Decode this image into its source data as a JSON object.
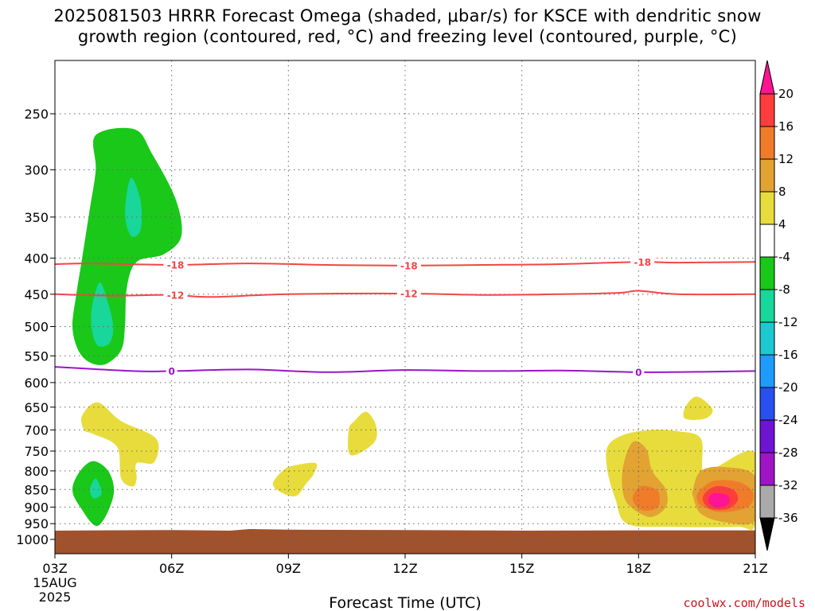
{
  "title": {
    "line1": "2025081503 HRRR Forecast Omega (shaded, μbar/s) for KSCE with dendritic snow",
    "line2": "growth region (contoured, red, °C) and freezing level (contoured, purple, °C)"
  },
  "credit": "coolwx.com/models",
  "chart_data": {
    "type": "heatmap",
    "title": "2025081503 HRRR Forecast Omega (shaded, μbar/s) for KSCE with dendritic snow growth region (contoured, red, °C) and freezing level (contoured, purple, °C)",
    "xlabel": "Forecast Time (UTC)",
    "ylabel": "",
    "x_range_hours": [
      3,
      21
    ],
    "y_range_hpa": [
      1040,
      200
    ],
    "y_axis": "pressure (inverted)",
    "grid": true,
    "x_ticks": [
      {
        "hour": 3,
        "label": "03Z",
        "sub1": "15AUG",
        "sub2": "2025"
      },
      {
        "hour": 6,
        "label": "06Z"
      },
      {
        "hour": 9,
        "label": "09Z"
      },
      {
        "hour": 12,
        "label": "12Z"
      },
      {
        "hour": 15,
        "label": "15Z"
      },
      {
        "hour": 18,
        "label": "18Z"
      },
      {
        "hour": 21,
        "label": "21Z"
      }
    ],
    "y_ticks": [
      "250",
      "300",
      "350",
      "400",
      "450",
      "500",
      "550",
      "600",
      "650",
      "700",
      "750",
      "800",
      "850",
      "900",
      "950",
      "1000"
    ],
    "colorbar": {
      "labels": [
        "20",
        "16",
        "12",
        "8",
        "4",
        "-4",
        "-8",
        "-12",
        "-16",
        "-20",
        "-24",
        "-28",
        "-32",
        "-36"
      ],
      "colors": [
        "#ff1493",
        "#ff3d3d",
        "#f07c2a",
        "#e2a333",
        "#e8dc3c",
        "#ffffff",
        "#19c819",
        "#19d69b",
        "#1ec8d2",
        "#1e9bff",
        "#2850f0",
        "#6e14d2",
        "#a014c8",
        "#aaaaaa",
        "#000000"
      ]
    },
    "contours": [
      {
        "name": "-18",
        "color": "#f04646",
        "label": "-18",
        "points": [
          [
            3,
            408
          ],
          [
            4,
            407
          ],
          [
            6,
            409
          ],
          [
            8,
            407
          ],
          [
            10,
            409
          ],
          [
            12,
            410
          ],
          [
            14,
            409
          ],
          [
            16,
            408
          ],
          [
            18,
            405
          ],
          [
            19,
            406
          ],
          [
            21,
            405
          ]
        ],
        "label_hours": [
          6.1,
          12.1,
          18.1
        ]
      },
      {
        "name": "-12",
        "color": "#f04646",
        "label": "-12",
        "points": [
          [
            3,
            450
          ],
          [
            4.5,
            452
          ],
          [
            6,
            451
          ],
          [
            7,
            454
          ],
          [
            9,
            450
          ],
          [
            12,
            449
          ],
          [
            14,
            451
          ],
          [
            16,
            450
          ],
          [
            17.5,
            448
          ],
          [
            18,
            445
          ],
          [
            19,
            450
          ],
          [
            21,
            450
          ]
        ],
        "label_hours": [
          6.1,
          12.1
        ]
      },
      {
        "name": "0",
        "color": "#9b14c8",
        "label": "0",
        "points": [
          [
            3,
            570
          ],
          [
            5,
            578
          ],
          [
            6,
            578
          ],
          [
            8,
            575
          ],
          [
            10,
            580
          ],
          [
            12,
            576
          ],
          [
            14,
            578
          ],
          [
            16,
            577
          ],
          [
            18,
            580
          ],
          [
            20,
            579
          ],
          [
            21,
            578
          ]
        ],
        "label_hours": [
          6,
          18
        ]
      }
    ],
    "omega_regions": [
      {
        "level": -4,
        "color": "#19c819",
        "points": [
          [
            4.05,
            268
          ],
          [
            5.05,
            263
          ],
          [
            5.5,
            285
          ],
          [
            6.1,
            330
          ],
          [
            6.25,
            372
          ],
          [
            5.8,
            395
          ],
          [
            5.1,
            405
          ],
          [
            4.85,
            440
          ],
          [
            4.8,
            500
          ],
          [
            4.7,
            540
          ],
          [
            4.3,
            565
          ],
          [
            3.9,
            562
          ],
          [
            3.6,
            540
          ],
          [
            3.45,
            500
          ],
          [
            3.55,
            450
          ],
          [
            3.7,
            400
          ],
          [
            3.9,
            340
          ],
          [
            4.05,
            300
          ]
        ]
      },
      {
        "level": -8,
        "color": "#19d69b",
        "points": [
          [
            4.95,
            308
          ],
          [
            5.2,
            332
          ],
          [
            5.2,
            365
          ],
          [
            4.95,
            372
          ],
          [
            4.8,
            345
          ]
        ]
      },
      {
        "level": -8,
        "color": "#19d69b",
        "points": [
          [
            4.15,
            433
          ],
          [
            4.35,
            460
          ],
          [
            4.5,
            500
          ],
          [
            4.4,
            528
          ],
          [
            4.1,
            532
          ],
          [
            3.95,
            505
          ],
          [
            3.95,
            470
          ]
        ]
      },
      {
        "level": -4,
        "color": "#19c819",
        "points": [
          [
            4.0,
            775
          ],
          [
            4.4,
            805
          ],
          [
            4.5,
            870
          ],
          [
            4.1,
            957
          ],
          [
            3.65,
            900
          ],
          [
            3.45,
            850
          ],
          [
            3.65,
            800
          ]
        ]
      },
      {
        "level": -8,
        "color": "#19d69b",
        "points": [
          [
            4.05,
            820
          ],
          [
            4.2,
            860
          ],
          [
            4.0,
            875
          ],
          [
            3.9,
            850
          ]
        ]
      },
      {
        "level": 4,
        "color": "#e8dc3c",
        "points": [
          [
            3.7,
            668
          ],
          [
            4.1,
            640
          ],
          [
            4.7,
            680
          ],
          [
            5.6,
            720
          ],
          [
            5.55,
            778
          ],
          [
            5.1,
            780
          ],
          [
            5.1,
            820
          ],
          [
            5.0,
            842
          ],
          [
            4.7,
            820
          ],
          [
            4.6,
            740
          ],
          [
            4.0,
            710
          ],
          [
            3.75,
            700
          ]
        ]
      },
      {
        "level": 4,
        "color": "#e8dc3c",
        "points": [
          [
            9.1,
            787
          ],
          [
            9.7,
            780
          ],
          [
            9.65,
            808
          ],
          [
            9.45,
            835
          ],
          [
            9.2,
            868
          ],
          [
            8.85,
            860
          ],
          [
            8.6,
            835
          ],
          [
            8.85,
            800
          ]
        ]
      },
      {
        "level": 4,
        "color": "#e8dc3c",
        "points": [
          [
            11.0,
            660
          ],
          [
            11.25,
            690
          ],
          [
            11.2,
            730
          ],
          [
            10.6,
            760
          ],
          [
            10.55,
            700
          ],
          [
            10.7,
            680
          ]
        ]
      },
      {
        "level": 4,
        "color": "#e8dc3c",
        "points": [
          [
            19.5,
            628
          ],
          [
            19.9,
            655
          ],
          [
            19.7,
            675
          ],
          [
            19.2,
            675
          ],
          [
            19.2,
            650
          ]
        ]
      },
      {
        "level": 4,
        "color": "#e8dc3c",
        "points": [
          [
            19.0,
            703
          ],
          [
            19.6,
            720
          ],
          [
            19.65,
            800
          ],
          [
            20.0,
            790
          ],
          [
            21,
            755
          ],
          [
            21,
            950
          ],
          [
            20.5,
            960
          ],
          [
            18.8,
            960
          ],
          [
            17.7,
            950
          ],
          [
            17.4,
            875
          ],
          [
            17.2,
            800
          ],
          [
            17.2,
            740
          ],
          [
            17.6,
            712
          ],
          [
            18.3,
            700
          ]
        ]
      },
      {
        "level": 8,
        "color": "#e2a333",
        "points": [
          [
            17.85,
            728
          ],
          [
            18.2,
            745
          ],
          [
            18.35,
            800
          ],
          [
            18.7,
            850
          ],
          [
            18.7,
            900
          ],
          [
            18.3,
            930
          ],
          [
            17.8,
            900
          ],
          [
            17.6,
            860
          ],
          [
            17.6,
            790
          ]
        ]
      },
      {
        "level": 8,
        "color": "#e2a333",
        "points": [
          [
            19.6,
            800
          ],
          [
            20.2,
            790
          ],
          [
            21,
            815
          ],
          [
            21,
            940
          ],
          [
            20.2,
            945
          ],
          [
            19.6,
            920
          ],
          [
            19.4,
            870
          ],
          [
            19.4,
            850
          ]
        ]
      },
      {
        "level": 12,
        "color": "#f07c2a",
        "points": [
          [
            18.15,
            840
          ],
          [
            18.5,
            855
          ],
          [
            18.5,
            900
          ],
          [
            18.1,
            910
          ],
          [
            17.85,
            880
          ],
          [
            17.95,
            850
          ]
        ]
      },
      {
        "level": 12,
        "color": "#f07c2a",
        "points": [
          [
            20.0,
            825
          ],
          [
            20.6,
            830
          ],
          [
            20.95,
            860
          ],
          [
            20.8,
            900
          ],
          [
            20.1,
            915
          ],
          [
            19.6,
            895
          ],
          [
            19.5,
            865
          ],
          [
            19.7,
            840
          ]
        ]
      },
      {
        "level": 16,
        "color": "#ff3d3d",
        "points": [
          [
            20.05,
            840
          ],
          [
            20.45,
            852
          ],
          [
            20.55,
            880
          ],
          [
            20.3,
            905
          ],
          [
            19.85,
            905
          ],
          [
            19.65,
            880
          ],
          [
            19.75,
            855
          ]
        ]
      },
      {
        "level": 20,
        "color": "#ff1493",
        "points": [
          [
            20.0,
            860
          ],
          [
            20.3,
            868
          ],
          [
            20.3,
            892
          ],
          [
            20.0,
            902
          ],
          [
            19.8,
            885
          ],
          [
            19.85,
            866
          ]
        ]
      }
    ],
    "terrain": {
      "color": "#a0522d",
      "points": [
        [
          3,
          972
        ],
        [
          6,
          970
        ],
        [
          7.5,
          972
        ],
        [
          8,
          967
        ],
        [
          9,
          969
        ],
        [
          12,
          970
        ],
        [
          15,
          972
        ],
        [
          18,
          971
        ],
        [
          21,
          971
        ]
      ]
    }
  }
}
